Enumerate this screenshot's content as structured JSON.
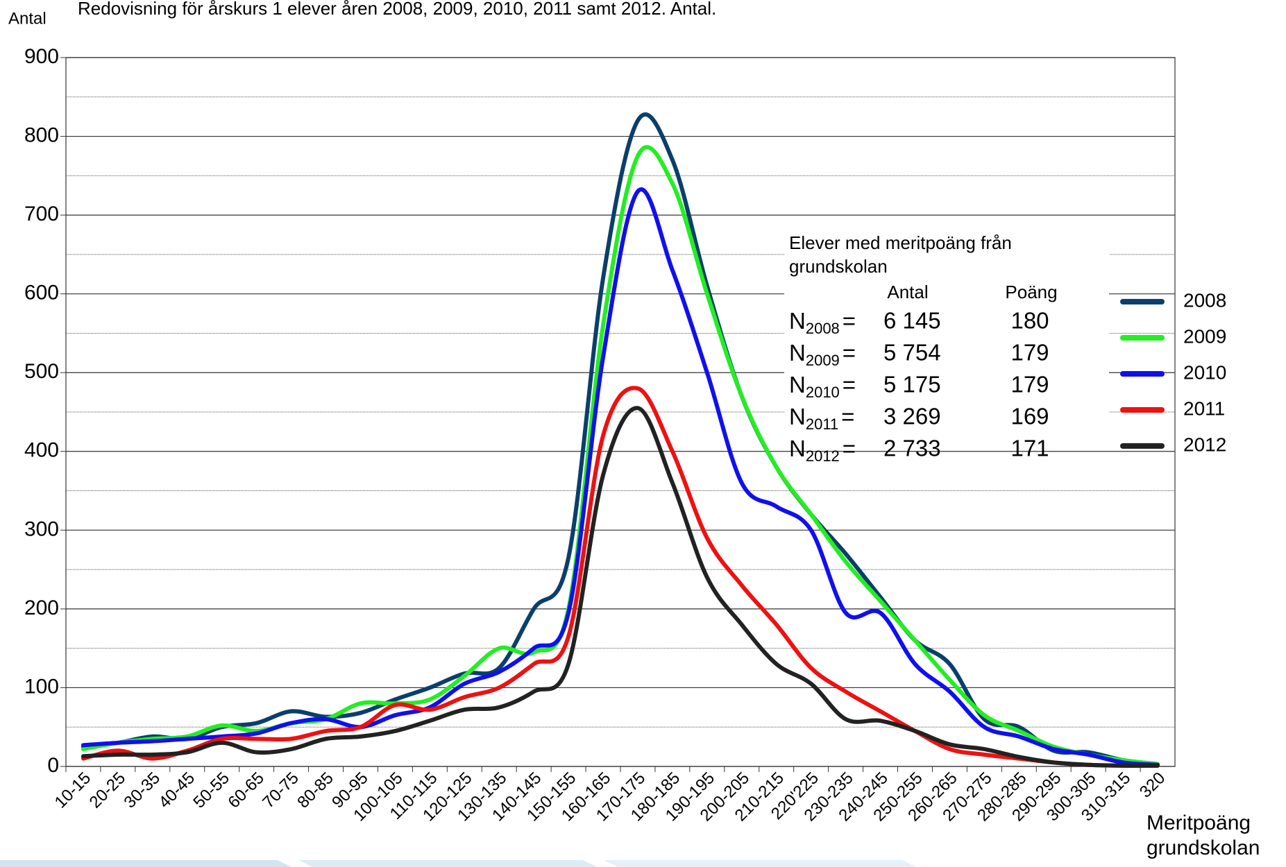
{
  "chart_data": {
    "type": "line",
    "title": "Redovisning för årskurs 1 elever åren 2008, 2009, 2010, 2011 samt 2012. Antal.",
    "y_label": "Antal",
    "x_label": "Meritpoäng grundskolan",
    "categories": [
      "10-15",
      "20-25",
      "30-35",
      "40-45",
      "50-55",
      "60-65",
      "70-75",
      "80-85",
      "90-95",
      "100-105",
      "110-115",
      "120-125",
      "130-135",
      "140-145",
      "150-155",
      "160-165",
      "170-175",
      "180-185",
      "190-195",
      "200-205",
      "210-215",
      "220'225",
      "230-235",
      "240-245",
      "250-255",
      "260-265",
      "270-275",
      "280-285",
      "290-295",
      "300-305",
      "310-315",
      "320"
    ],
    "series": [
      {
        "name": "2008",
        "color": "#0b3f6b",
        "values": [
          25,
          30,
          38,
          35,
          50,
          55,
          70,
          63,
          68,
          85,
          100,
          118,
          125,
          200,
          265,
          620,
          820,
          770,
          610,
          470,
          380,
          320,
          270,
          215,
          160,
          130,
          60,
          50,
          20,
          18,
          8,
          3
        ]
      },
      {
        "name": "2009",
        "color": "#22ee22",
        "values": [
          22,
          30,
          35,
          38,
          52,
          45,
          55,
          60,
          80,
          80,
          85,
          115,
          150,
          145,
          200,
          560,
          775,
          740,
          600,
          470,
          380,
          320,
          260,
          210,
          160,
          110,
          65,
          45,
          25,
          15,
          8,
          3
        ]
      },
      {
        "name": "2010",
        "color": "#1010ee",
        "values": [
          27,
          30,
          32,
          35,
          38,
          42,
          55,
          60,
          50,
          65,
          75,
          105,
          120,
          150,
          195,
          520,
          730,
          630,
          500,
          360,
          330,
          300,
          195,
          195,
          130,
          95,
          50,
          38,
          22,
          15,
          5,
          2
        ]
      },
      {
        "name": "2011",
        "color": "#ee1111",
        "values": [
          10,
          20,
          10,
          20,
          35,
          35,
          35,
          45,
          50,
          78,
          72,
          88,
          100,
          130,
          165,
          420,
          480,
          400,
          290,
          230,
          180,
          125,
          95,
          70,
          45,
          22,
          15,
          10,
          5,
          2,
          1,
          1
        ]
      },
      {
        "name": "2012",
        "color": "#222222",
        "values": [
          13,
          15,
          15,
          18,
          30,
          18,
          22,
          35,
          38,
          45,
          58,
          72,
          75,
          95,
          130,
          370,
          455,
          360,
          240,
          180,
          130,
          105,
          60,
          58,
          45,
          28,
          22,
          12,
          5,
          2,
          1,
          1
        ]
      }
    ],
    "ylim": [
      0,
      900
    ],
    "yticks": [
      0,
      100,
      200,
      300,
      400,
      500,
      600,
      700,
      800,
      900
    ],
    "minor_yticks": [
      50,
      150,
      250,
      350,
      450,
      550,
      650,
      750,
      850
    ],
    "grid": true,
    "legend": "right",
    "annotation": {
      "heading": [
        "Elever med meritpoäng från",
        "grundskolan"
      ],
      "columns": [
        "Antal",
        "Poäng"
      ],
      "rows": [
        {
          "label": "N",
          "subscript": "2008",
          "eq": "=",
          "antal": "6 145",
          "poang": "180"
        },
        {
          "label": "N",
          "subscript": "2009",
          "eq": "=",
          "antal": "5 754",
          "poang": "179"
        },
        {
          "label": "N",
          "subscript": "2010",
          "eq": "=",
          "antal": "5 175",
          "poang": "179"
        },
        {
          "label": "N",
          "subscript": "2011",
          "eq": "=",
          "antal": "3 269",
          "poang": "169"
        },
        {
          "label": "N",
          "subscript": "2012",
          "eq": "=",
          "antal": "2 733",
          "poang": "171"
        }
      ]
    }
  }
}
